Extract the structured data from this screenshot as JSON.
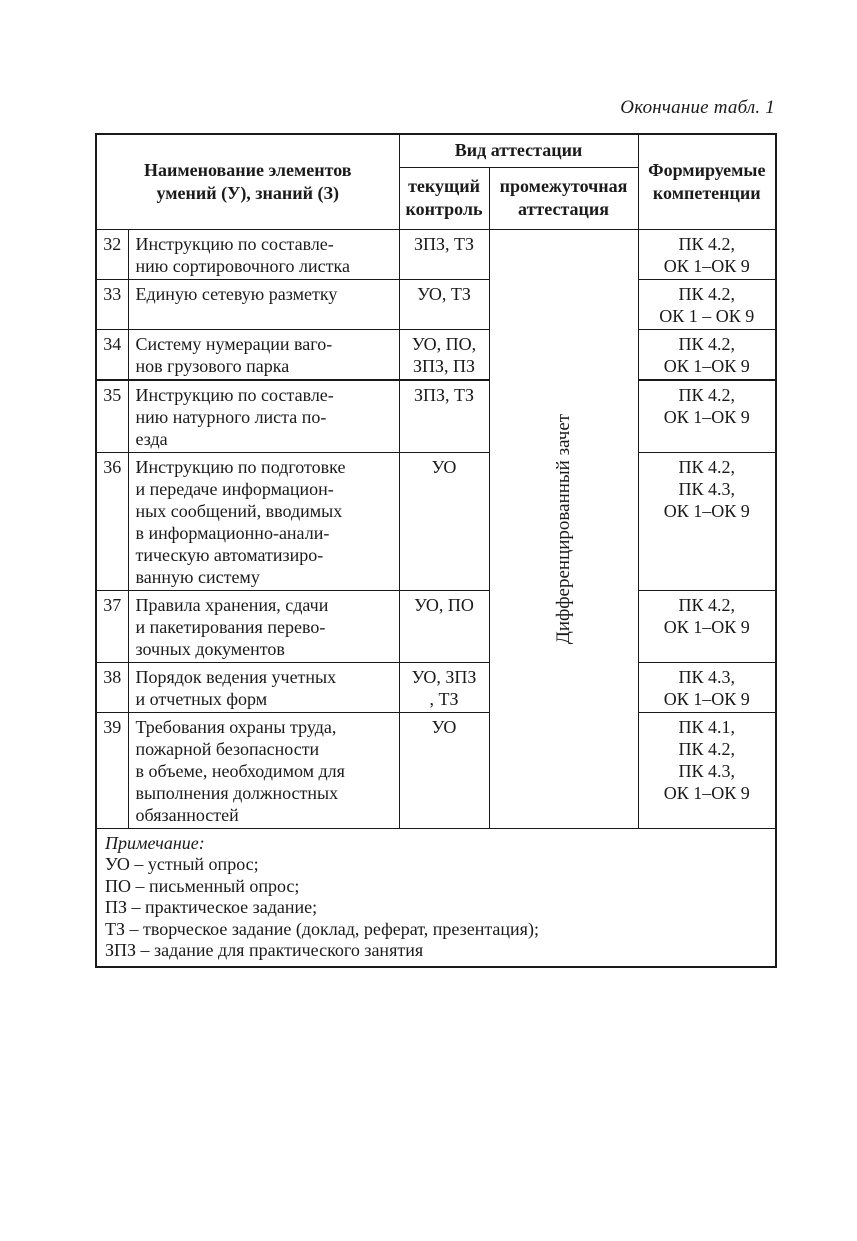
{
  "page": {
    "caption": "Окончание табл. 1"
  },
  "table": {
    "header": {
      "name": "Наименование элементов\nумений (У), знаний (З)",
      "attestation": "Вид аттестации",
      "current": "текущий\nконтроль",
      "intermediate": "промежуточная\nаттестация",
      "competencies": "Формируемые\nкомпетенции"
    },
    "intermediate_value": "Дифференцированный зачет",
    "rows": [
      {
        "num": "32",
        "name": "Инструкцию по составле-\nнию сортировочного листка",
        "current": "ЗПЗ, ТЗ",
        "competencies": "ПК 4.2,\nОК 1–ОК 9"
      },
      {
        "num": "33",
        "name": "Единую сетевую разметку",
        "current": "УО, ТЗ",
        "competencies": "ПК 4.2,\nОК 1 – ОК 9"
      },
      {
        "num": "34",
        "name": "Систему нумерации ваго-\nнов грузового парка",
        "current": "УО, ПО,\nЗПЗ, ПЗ",
        "competencies": "ПК 4.2,\nОК 1–ОК 9"
      },
      {
        "num": "35",
        "name": "Инструкцию по составле-\nнию натурного листа по-\nезда",
        "current": "ЗПЗ, ТЗ",
        "competencies": "ПК 4.2,\nОК 1–ОК 9"
      },
      {
        "num": "36",
        "name": "Инструкцию по подготовке\nи передаче информацион-\nных сообщений, вводимых\nв информационно-анали-\nтическую автоматизиро-\nванную систему",
        "current": "УО",
        "competencies": "ПК 4.2,\nПК 4.3,\nОК 1–ОК 9"
      },
      {
        "num": "37",
        "name": "Правила хранения, сдачи\nи пакетирования перево-\nзочных документов",
        "current": "УО, ПО",
        "competencies": "ПК 4.2,\nОК 1–ОК 9"
      },
      {
        "num": "38",
        "name": "Порядок ведения учетных\nи отчетных форм",
        "current": "УО, ЗПЗ\n, ТЗ",
        "competencies": "ПК 4.3,\nОК 1–ОК 9"
      },
      {
        "num": "39",
        "name": "Требования охраны труда,\nпожарной безопасности\nв объеме, необходимом для\nвыполнения должностных\nобязанностей",
        "current": "УО",
        "competencies": "ПК 4.1,\nПК 4.2,\nПК 4.3,\nОК 1–ОК 9"
      }
    ],
    "notes": {
      "title": "Примечание:",
      "items": [
        "УО – устный опрос;",
        "ПО – письменный опрос;",
        "ПЗ – практическое задание;",
        "ТЗ – творческое задание (доклад, реферат, презентация);",
        "ЗПЗ – задание для практического занятия"
      ]
    }
  },
  "colors": {
    "text": "#1a1a1a",
    "border": "#1a1a1a",
    "background": "#ffffff"
  }
}
